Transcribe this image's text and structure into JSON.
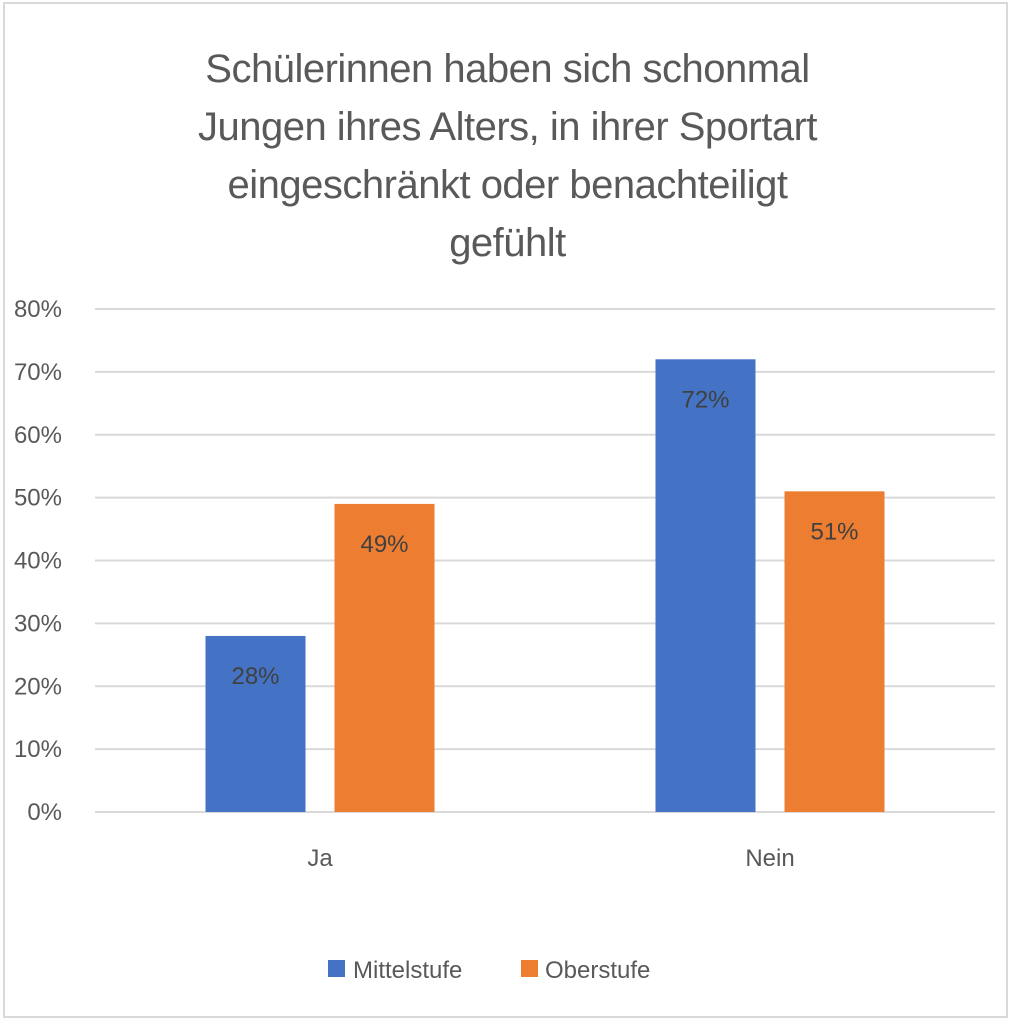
{
  "chart_data": {
    "type": "bar",
    "title": "Schülerinnen haben sich schonmal Jungen ihres Alters, in ihrer Sportart eingeschränkt oder benachteiligt gefühlt",
    "title_lines": [
      "Schülerinnen haben sich schonmal",
      "Jungen ihres Alters, in ihrer Sportart",
      "eingeschränkt oder benachteiligt",
      "gefühlt"
    ],
    "categories": [
      "Ja",
      "Nein"
    ],
    "series": [
      {
        "name": "Mittelstufe",
        "color": "#4472c4",
        "values": [
          28,
          72
        ],
        "labels": [
          "28%",
          "72%"
        ]
      },
      {
        "name": "Oberstufe",
        "color": "#ed7d31",
        "values": [
          49,
          51
        ],
        "labels": [
          "49%",
          "51%"
        ]
      }
    ],
    "xlabel": "",
    "ylabel": "",
    "ylim": [
      0,
      80
    ],
    "yticks": [
      0,
      10,
      20,
      30,
      40,
      50,
      60,
      70,
      80
    ],
    "ytick_labels": [
      "0%",
      "10%",
      "20%",
      "30%",
      "40%",
      "50%",
      "60%",
      "70%",
      "80%"
    ],
    "grid": true,
    "legend_position": "bottom"
  }
}
